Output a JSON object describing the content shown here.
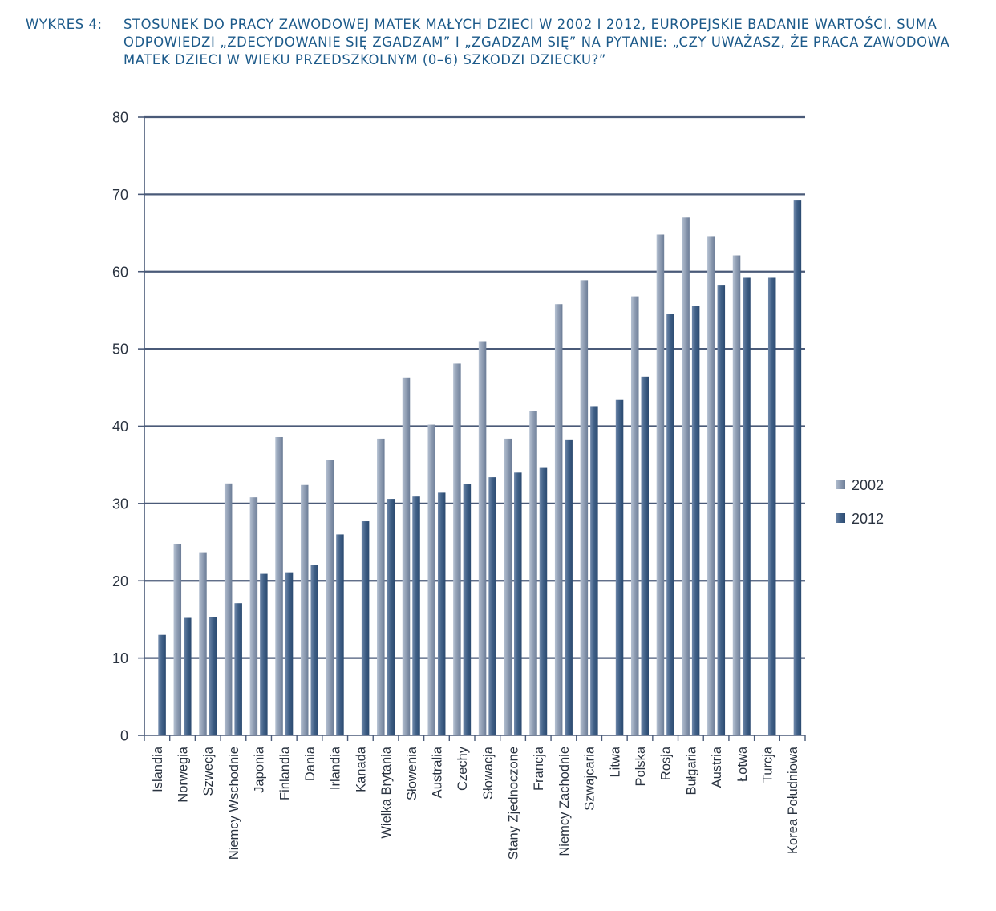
{
  "caption": {
    "label": "WYKRES 4:",
    "text": "STOSUNEK DO PRACY ZAWODOWEJ MATEK MAŁYCH DZIECI W 2002 I 2012, EUROPEJSKIE BADANIE WARTOŚCI. SUMA ODPOWIEDZI „ZDECYDOWANIE SIĘ ZGADZAM” I „ZGADZAM SIĘ” NA PYTANIE: „CZY UWAŻASZ, ŻE PRACA ZAWODOWA MATEK DZIECI W WIEKU PRZEDSZKOLNYM (0–6) SZKODZI DZIECKU?”"
  },
  "chart_data": {
    "type": "bar",
    "title": "",
    "xlabel": "",
    "ylabel": "",
    "ylim": [
      0,
      80
    ],
    "yticks": [
      0,
      10,
      20,
      30,
      40,
      50,
      60,
      70,
      80
    ],
    "grid": true,
    "legend_position": "right",
    "categories": [
      "Islandia",
      "Norwegia",
      "Szwecja",
      "Niemcy Wschodnie",
      "Japonia",
      "Finlandia",
      "Dania",
      "Irlandia",
      "Kanada",
      "Wielka Brytania",
      "Słowenia",
      "Australia",
      "Czechy",
      "Słowacja",
      "Stany Zjednoczone",
      "Francja",
      "Niemcy Zachodnie",
      "Szwajcaria",
      "Litwa",
      "Polska",
      "Rosja",
      "Bułgaria",
      "Austria",
      "Łotwa",
      "Turcja",
      "Korea Południowa"
    ],
    "series": [
      {
        "name": "2002",
        "color": "#8f9db3",
        "values": [
          null,
          24.8,
          23.7,
          32.6,
          30.8,
          38.6,
          32.4,
          35.6,
          null,
          38.4,
          46.3,
          40.2,
          48.1,
          51.0,
          38.4,
          42.0,
          55.8,
          58.9,
          null,
          56.8,
          64.8,
          67.0,
          64.6,
          62.1,
          null,
          null
        ]
      },
      {
        "name": "2012",
        "color": "#3f5f86",
        "values": [
          13.0,
          15.2,
          15.3,
          17.1,
          20.9,
          21.1,
          22.1,
          26.0,
          27.7,
          30.6,
          30.9,
          31.4,
          32.5,
          33.4,
          34.0,
          34.7,
          38.2,
          42.6,
          43.4,
          46.4,
          54.5,
          55.6,
          58.2,
          59.2,
          59.2,
          69.2
        ]
      }
    ]
  }
}
